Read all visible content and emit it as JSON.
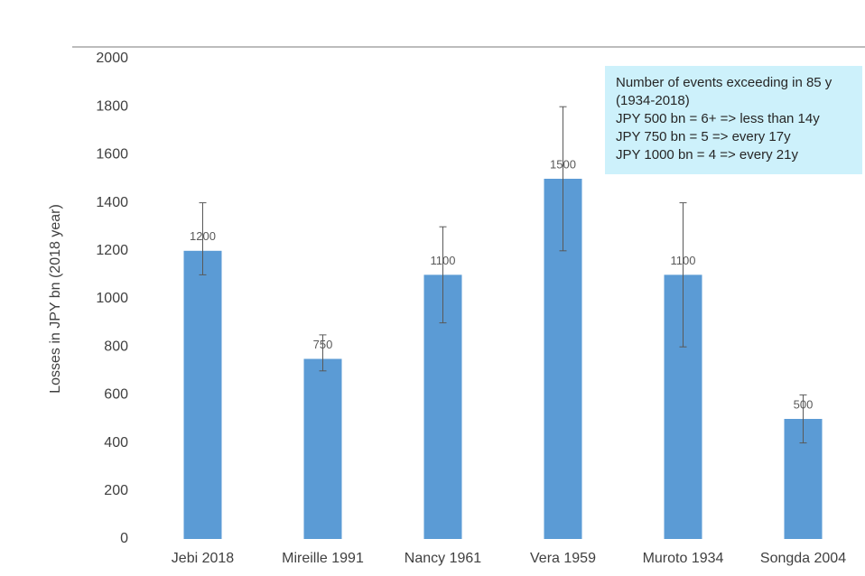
{
  "chart_data": {
    "type": "bar",
    "y_label": "Losses in JPY bn (2018 year)",
    "categories": [
      "Jebi 2018",
      "Mireille 1991",
      "Nancy 1961",
      "Vera 1959",
      "Muroto 1934",
      "Songda 2004"
    ],
    "series": [
      {
        "name": "Losses",
        "color": "#5b9bd5",
        "values": [
          1200,
          750,
          1100,
          1500,
          1100,
          500
        ]
      }
    ],
    "error_low": [
      1100,
      700,
      900,
      1200,
      800,
      400
    ],
    "error_high": [
      1400,
      850,
      1300,
      1800,
      1400,
      600
    ],
    "ylim": [
      0,
      2000
    ],
    "yticks": [
      0,
      200,
      400,
      600,
      800,
      1000,
      1200,
      1400,
      1600,
      1800,
      2000
    ],
    "annotation": [
      "Number of events exceeding in 85 y",
      "(1934-2018)",
      "JPY 500 bn   =  6+ => less than 14y",
      "JPY 750 bn   =  5   => every 17y",
      "JPY 1000 bn = 4   => every 21y"
    ]
  }
}
